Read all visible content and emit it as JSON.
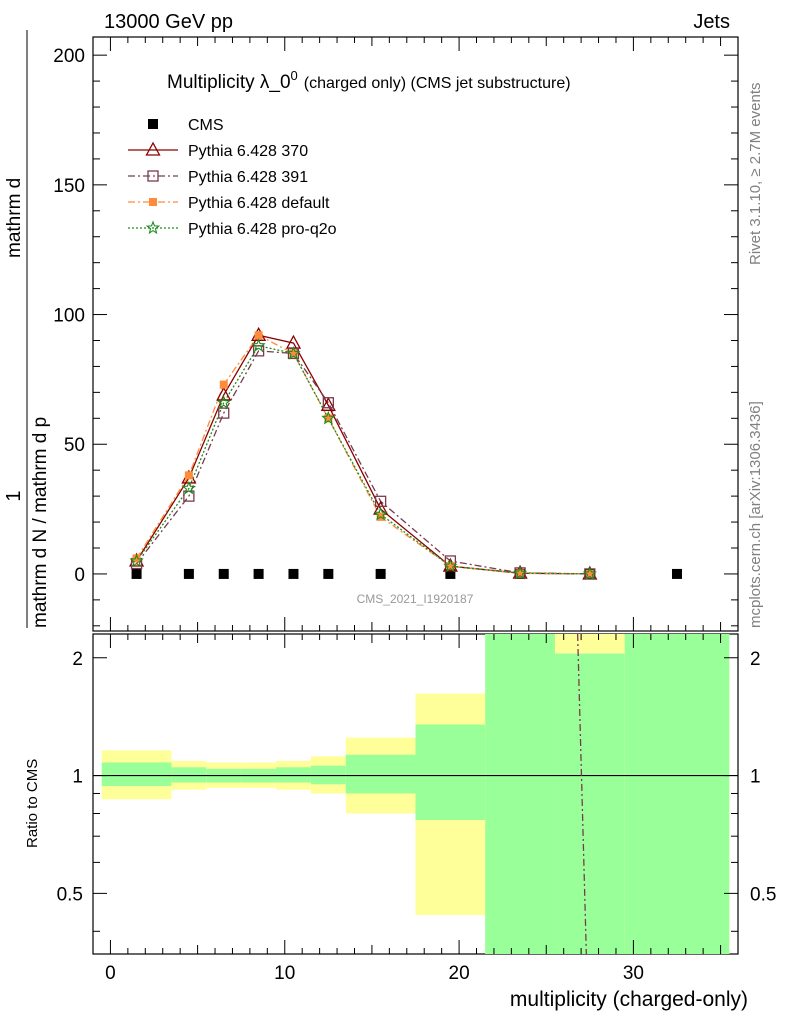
{
  "header": {
    "left": "13000 GeV pp",
    "right": "Jets"
  },
  "side_labels": {
    "rivet": "Rivet 3.1.10, ≥ 2.7M events",
    "mcplots": "mcplots.cern.ch [arXiv:1306.3436]"
  },
  "analysis_id": "CMS_2021_I1920187",
  "chart_data": [
    {
      "type": "line",
      "title": "Multiplicity λ_0",
      "title_sup": "0",
      "subtitle": "(charged only) (CMS jet substructure)",
      "ylabel_numerator": "1",
      "ylabel_denominator": "mathrm d N / mathrm d p",
      "ylabel": "mathrm d",
      "ylim": [
        -22,
        207
      ],
      "xlim": [
        -1,
        36
      ],
      "yticks": [
        0,
        50,
        100,
        150,
        200
      ],
      "xticks": [
        0,
        10,
        20,
        30
      ],
      "grid": false,
      "legend_position": "top-left",
      "series": [
        {
          "name": "CMS",
          "color": "#000000",
          "marker": "square",
          "x": [
            1.5,
            4.5,
            6.5,
            8.5,
            10.5,
            12.5,
            15.5,
            19.5,
            23.5,
            27.5,
            32.5
          ],
          "y": [
            0,
            0,
            0,
            0,
            0,
            0,
            0,
            0,
            0,
            0,
            0
          ]
        },
        {
          "name": "Pythia 6.428 370",
          "color": "#8b0000",
          "marker": "triangle-open",
          "dash": "solid",
          "x": [
            1.5,
            4.5,
            6.5,
            8.5,
            10.5,
            12.5,
            15.5,
            19.5,
            23.5,
            27.5
          ],
          "y": [
            5,
            37,
            69,
            92,
            89,
            65,
            25,
            3,
            0.3,
            0
          ]
        },
        {
          "name": "Pythia 6.428 391",
          "color": "#7a3b4f",
          "marker": "square-open",
          "dash": "dashdot",
          "x": [
            1.5,
            4.5,
            6.5,
            8.5,
            10.5,
            12.5,
            15.5,
            19.5,
            23.5,
            27.5
          ],
          "y": [
            4,
            30,
            62,
            86,
            85,
            66,
            28,
            5,
            0.4,
            0
          ]
        },
        {
          "name": "Pythia 6.428 default",
          "color": "#ff8c3a",
          "marker": "square-filled",
          "dash": "dashdot",
          "x": [
            1.5,
            4.5,
            6.5,
            8.5,
            10.5,
            12.5,
            15.5,
            19.5,
            23.5,
            27.5
          ],
          "y": [
            6,
            38,
            73,
            92,
            85,
            60,
            22,
            3,
            0.2,
            0
          ]
        },
        {
          "name": "Pythia 6.428 pro-q2o",
          "color": "#1a8c1a",
          "marker": "star",
          "dash": "dotted",
          "x": [
            1.5,
            4.5,
            6.5,
            8.5,
            10.5,
            12.5,
            15.5,
            19.5,
            23.5,
            27.5
          ],
          "y": [
            5,
            33,
            66,
            88,
            85,
            60,
            23,
            3,
            0.3,
            0
          ]
        }
      ]
    },
    {
      "type": "area",
      "ylabel": "Ratio to CMS",
      "xlabel": "multiplicity (charged-only)",
      "ylim": [
        0.35,
        2.3
      ],
      "xlim": [
        -1,
        36
      ],
      "yscale": "log",
      "yticks": [
        0.5,
        1,
        2
      ],
      "xticks": [
        0,
        10,
        20,
        30
      ],
      "reference_line": 1,
      "bands": [
        {
          "x0": -0.5,
          "x1": 3.5,
          "yellow": [
            0.87,
            1.16
          ],
          "green": [
            0.94,
            1.08
          ]
        },
        {
          "x0": 3.5,
          "x1": 5.5,
          "yellow": [
            0.92,
            1.09
          ],
          "green": [
            0.96,
            1.05
          ]
        },
        {
          "x0": 5.5,
          "x1": 7.5,
          "yellow": [
            0.93,
            1.08
          ],
          "green": [
            0.96,
            1.04
          ]
        },
        {
          "x0": 7.5,
          "x1": 9.5,
          "yellow": [
            0.93,
            1.08
          ],
          "green": [
            0.96,
            1.04
          ]
        },
        {
          "x0": 9.5,
          "x1": 11.5,
          "yellow": [
            0.92,
            1.09
          ],
          "green": [
            0.96,
            1.05
          ]
        },
        {
          "x0": 11.5,
          "x1": 13.5,
          "yellow": [
            0.9,
            1.12
          ],
          "green": [
            0.95,
            1.06
          ]
        },
        {
          "x0": 13.5,
          "x1": 17.5,
          "yellow": [
            0.8,
            1.25
          ],
          "green": [
            0.9,
            1.13
          ]
        },
        {
          "x0": 17.5,
          "x1": 21.5,
          "yellow": [
            0.44,
            1.62
          ],
          "green": [
            0.77,
            1.35
          ]
        },
        {
          "x0": 21.5,
          "x1": 25.5,
          "yellow": [
            0.35,
            2.3
          ],
          "green": [
            0.35,
            2.3
          ]
        },
        {
          "x0": 25.5,
          "x1": 29.5,
          "yellow": [
            2.05,
            2.3
          ],
          "green": [
            0.35,
            2.05
          ]
        },
        {
          "x0": 29.5,
          "x1": 35.5,
          "yellow": [
            0.35,
            2.3
          ],
          "green": [
            0.35,
            2.3
          ]
        }
      ],
      "ratio_line": {
        "name": "Pythia 6.428 391",
        "x": [
          26.8,
          27.3
        ],
        "y": [
          2.3,
          0.35
        ]
      }
    }
  ]
}
